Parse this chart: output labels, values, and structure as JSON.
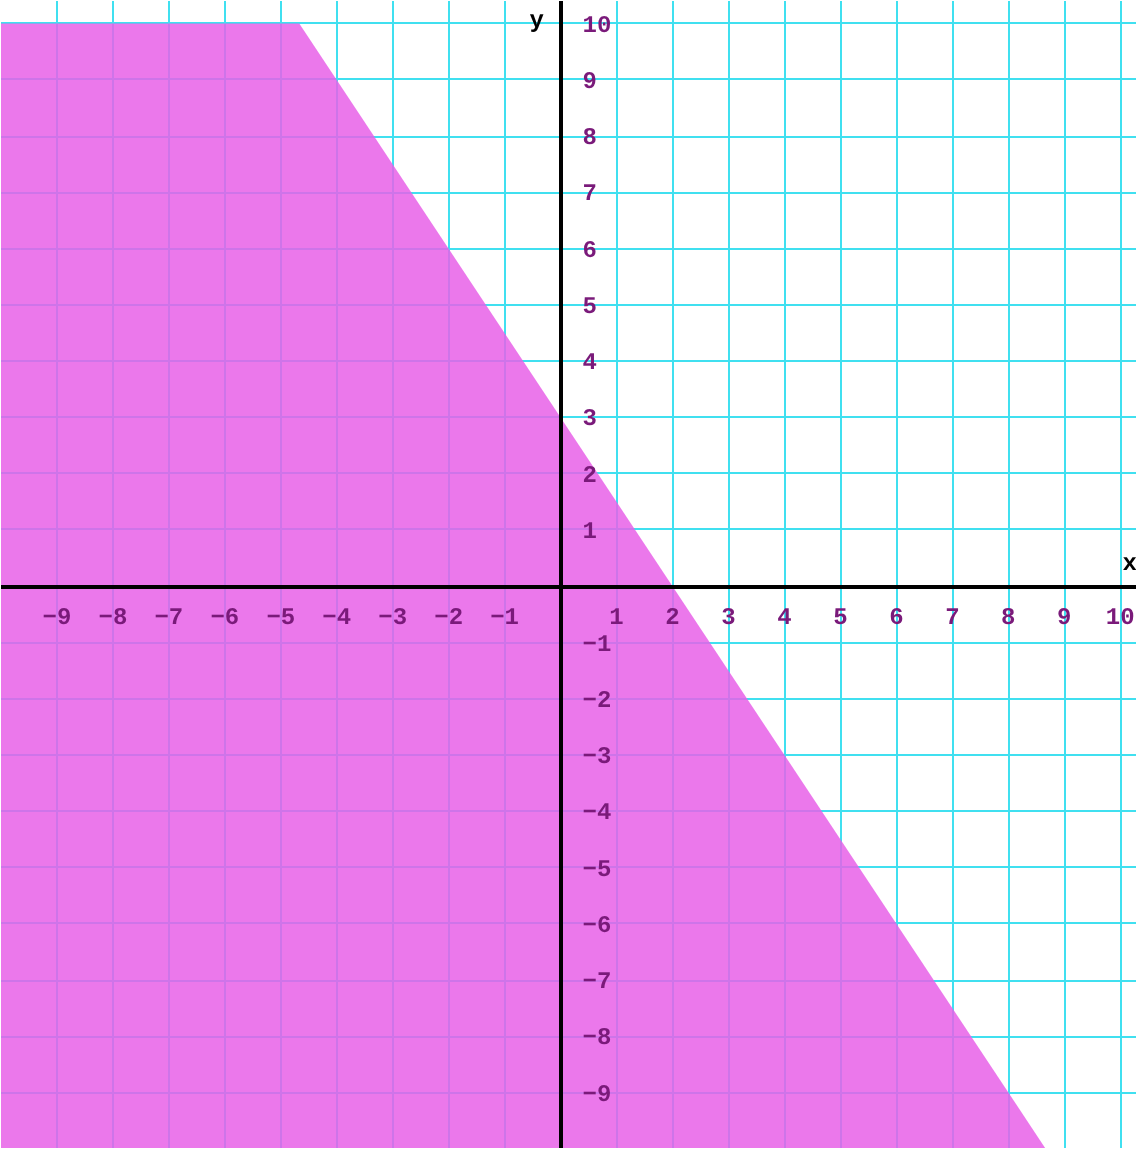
{
  "chart_data": {
    "type": "area",
    "xlabel": "x",
    "ylabel": "y",
    "x": [
      -10,
      -4.67,
      8.67
    ],
    "series": [
      {
        "color": "#e860e8",
        "values": [
          10,
          10,
          -10
        ]
      }
    ],
    "xlim": [
      -10,
      10.3
    ],
    "ylim": [
      -10,
      10.4
    ],
    "xticks": [
      -9,
      -8,
      -7,
      -6,
      -5,
      -4,
      -3,
      -2,
      -1,
      {
        "value": 0,
        "label": null
      },
      1,
      2,
      3,
      4,
      5,
      6,
      7,
      8,
      9,
      10
    ],
    "yticks": [
      -9,
      -8,
      -7,
      -6,
      -5,
      -4,
      -3,
      -2,
      -1,
      {
        "value": 0,
        "label": null
      },
      1,
      2,
      3,
      4,
      5,
      6,
      7,
      8,
      9,
      10
    ],
    "grid": true
  }
}
